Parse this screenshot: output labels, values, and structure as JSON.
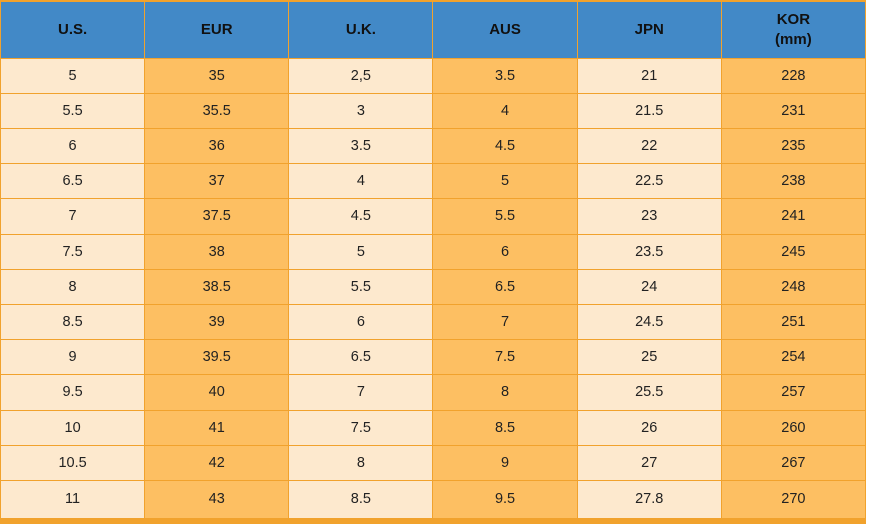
{
  "colors": {
    "header_bg": "#4289C7",
    "column_light_bg": "#FDE9CE",
    "column_orange_bg": "#FDBF62",
    "grid_border": "#F1A22D",
    "header_text": "#111111",
    "cell_text": "#222222",
    "page_bg": "#FFFFFF"
  },
  "chart_data": {
    "type": "table",
    "title": "",
    "headers": [
      {
        "label": "U.S.",
        "sub": ""
      },
      {
        "label": "EUR",
        "sub": ""
      },
      {
        "label": "U.K.",
        "sub": ""
      },
      {
        "label": "AUS",
        "sub": ""
      },
      {
        "label": "JPN",
        "sub": ""
      },
      {
        "label": "KOR",
        "sub": "(mm)"
      }
    ],
    "rows": [
      [
        "5",
        "35",
        "2,5",
        "3.5",
        "21",
        "228"
      ],
      [
        "5.5",
        "35.5",
        "3",
        "4",
        "21.5",
        "231"
      ],
      [
        "6",
        "36",
        "3.5",
        "4.5",
        "22",
        "235"
      ],
      [
        "6.5",
        "37",
        "4",
        "5",
        "22.5",
        "238"
      ],
      [
        "7",
        "37.5",
        "4.5",
        "5.5",
        "23",
        "241"
      ],
      [
        "7.5",
        "38",
        "5",
        "6",
        "23.5",
        "245"
      ],
      [
        "8",
        "38.5",
        "5.5",
        "6.5",
        "24",
        "248"
      ],
      [
        "8.5",
        "39",
        "6",
        "7",
        "24.5",
        "251"
      ],
      [
        "9",
        "39.5",
        "6.5",
        "7.5",
        "25",
        "254"
      ],
      [
        "9.5",
        "40",
        "7",
        "8",
        "25.5",
        "257"
      ],
      [
        "10",
        "41",
        "7.5",
        "8.5",
        "26",
        "260"
      ],
      [
        "10.5",
        "42",
        "8",
        "9",
        "27",
        "267"
      ],
      [
        "11",
        "43",
        "8.5",
        "9.5",
        "27.8",
        "270"
      ]
    ]
  }
}
